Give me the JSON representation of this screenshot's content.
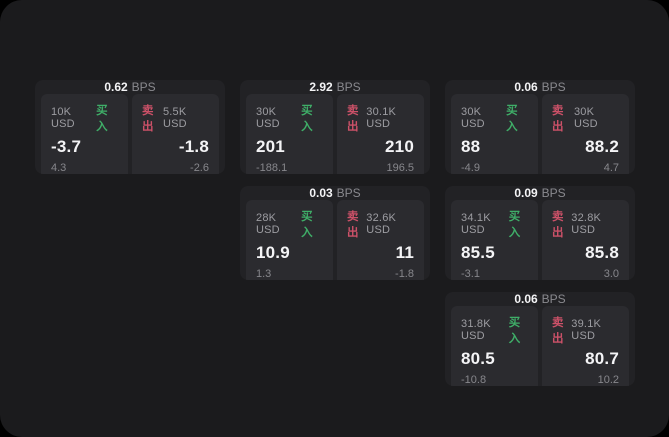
{
  "labels": {
    "bps": "BPS",
    "buy": "买入",
    "sell": "卖出"
  },
  "colors": {
    "buy": "#3fae68",
    "sell": "#cc5168",
    "page_bg": "#1b1b1d",
    "card_bg": "#222225",
    "panel_bg": "#2b2b2f"
  },
  "cards": [
    {
      "row": 1,
      "col": 1,
      "bps": "0.62",
      "buy": {
        "amount": "10K USD",
        "price": "-3.7",
        "delta": "4.3"
      },
      "sell": {
        "amount": "5.5K USD",
        "price": "-1.8",
        "delta": "-2.6"
      }
    },
    {
      "row": 1,
      "col": 2,
      "bps": "2.92",
      "buy": {
        "amount": "30K USD",
        "price": "201",
        "delta": "-188.1"
      },
      "sell": {
        "amount": "30.1K USD",
        "price": "210",
        "delta": "196.5"
      }
    },
    {
      "row": 1,
      "col": 3,
      "bps": "0.06",
      "buy": {
        "amount": "30K USD",
        "price": "88",
        "delta": "-4.9"
      },
      "sell": {
        "amount": "30K USD",
        "price": "88.2",
        "delta": "4.7"
      }
    },
    {
      "row": 2,
      "col": 2,
      "bps": "0.03",
      "buy": {
        "amount": "28K USD",
        "price": "10.9",
        "delta": "1.3"
      },
      "sell": {
        "amount": "32.6K USD",
        "price": "11",
        "delta": "-1.8"
      }
    },
    {
      "row": 2,
      "col": 3,
      "bps": "0.09",
      "buy": {
        "amount": "34.1K USD",
        "price": "85.5",
        "delta": "-3.1"
      },
      "sell": {
        "amount": "32.8K USD",
        "price": "85.8",
        "delta": "3.0"
      }
    },
    {
      "row": 3,
      "col": 3,
      "bps": "0.06",
      "buy": {
        "amount": "31.8K USD",
        "price": "80.5",
        "delta": "-10.8"
      },
      "sell": {
        "amount": "39.1K USD",
        "price": "80.7",
        "delta": "10.2"
      }
    }
  ]
}
